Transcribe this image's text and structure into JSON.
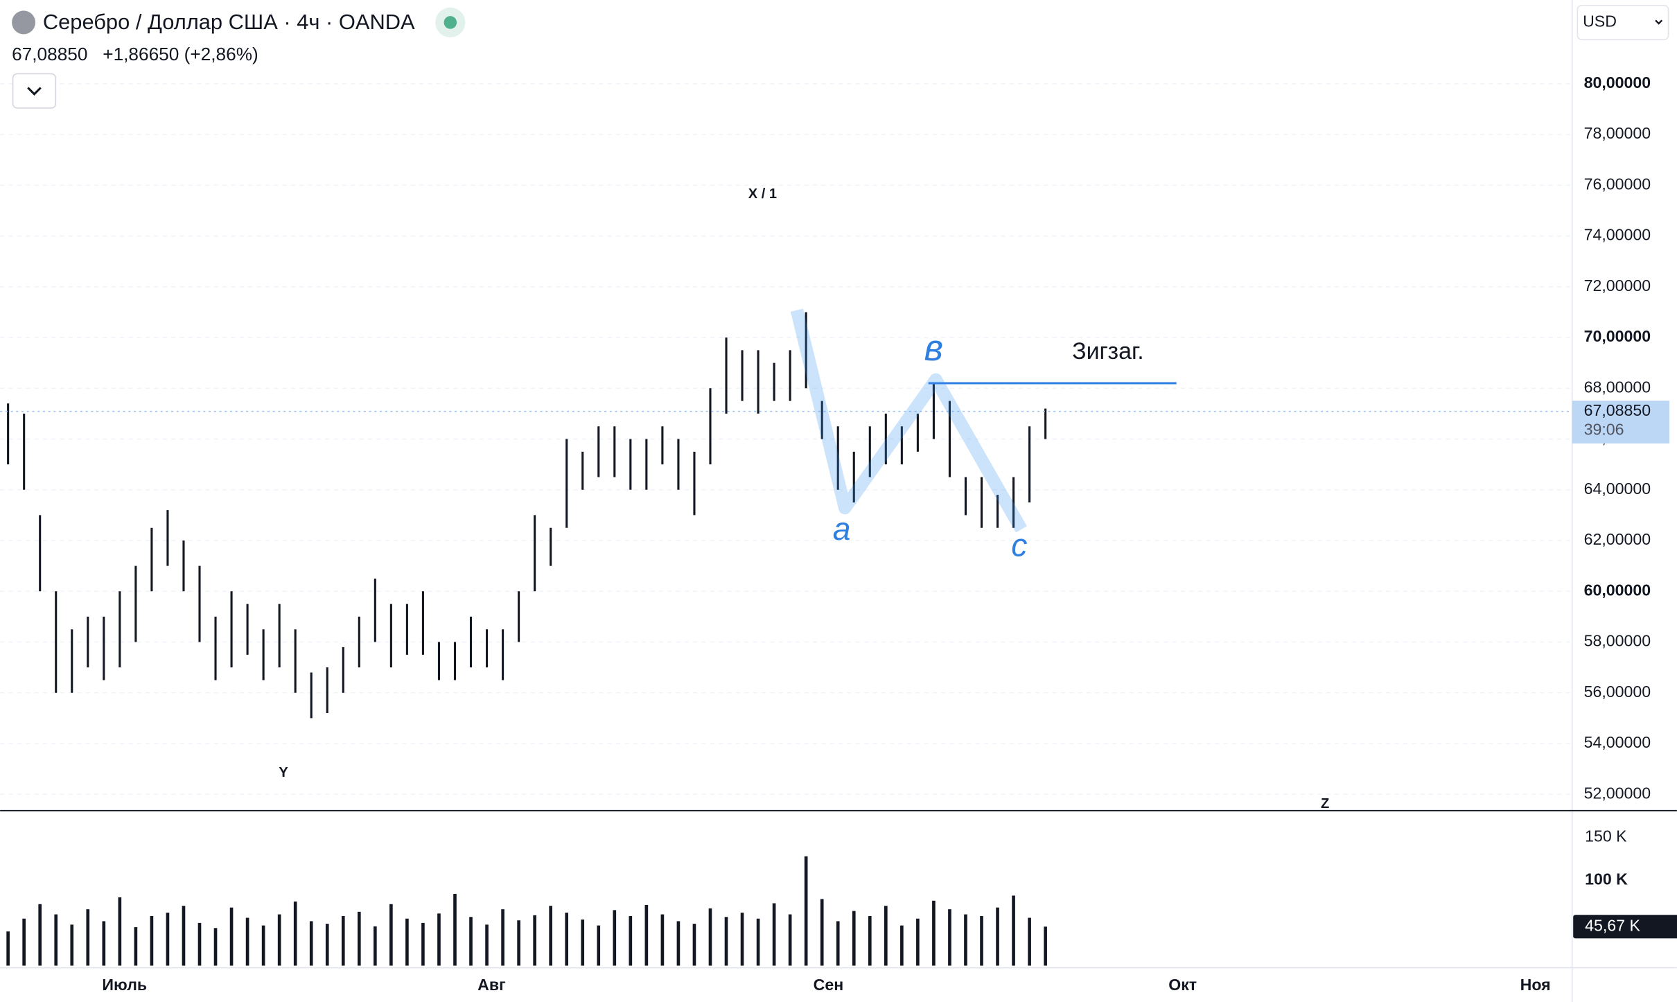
{
  "header": {
    "symbol": "Серебро / Доллар США · 4ч · OANDA",
    "price": "67,08850",
    "change": "+1,86650 (+2,86%)",
    "currency": "USD"
  },
  "chart_data": {
    "type": "ohlc",
    "color": "#131722",
    "volume_color": "#131722",
    "grid": true,
    "x": [
      0,
      1,
      2,
      3,
      4,
      5,
      6,
      7,
      8,
      9,
      10,
      11,
      12,
      13,
      14,
      15,
      16,
      17,
      18,
      19,
      20,
      21,
      22,
      23,
      24,
      25,
      26,
      27,
      28,
      29,
      30,
      31,
      32,
      33,
      34,
      35,
      36,
      37,
      38,
      39,
      40,
      41,
      42,
      43,
      44,
      45,
      46,
      47,
      48,
      49,
      50,
      51,
      52,
      53,
      54,
      55,
      56,
      57,
      58,
      59,
      60,
      61,
      62,
      63,
      64,
      65
    ],
    "high": [
      67.4,
      67,
      63,
      60,
      58.5,
      59,
      59,
      60,
      61,
      62.5,
      63.2,
      62,
      61,
      59,
      60,
      59.5,
      58.5,
      59.5,
      58.5,
      56.8,
      57,
      57.8,
      59,
      60.5,
      59.5,
      59.5,
      60,
      58,
      58,
      59,
      58.5,
      58.5,
      60,
      63,
      62.5,
      66,
      65.5,
      66.5,
      66.5,
      66,
      66,
      66.5,
      66,
      65.5,
      68,
      70,
      69.5,
      69.5,
      69,
      69.5,
      71,
      67.5,
      66.5,
      65.5,
      66.5,
      67,
      66.5,
      67,
      68.2,
      67.5,
      64.5,
      64.5,
      63.8,
      64.5,
      66.5,
      67.2
    ],
    "low": [
      65,
      64,
      60,
      56,
      56,
      57,
      56.5,
      57,
      58,
      60,
      61,
      60,
      58,
      56.5,
      57,
      57.5,
      56.5,
      57,
      56,
      55,
      55.2,
      56,
      57,
      58,
      57,
      57.5,
      57.5,
      56.5,
      56.5,
      57,
      57,
      56.5,
      58,
      60,
      61,
      62.5,
      64,
      64.5,
      64.5,
      64,
      64,
      65,
      64,
      63,
      65,
      67,
      67.5,
      67,
      67.5,
      67.5,
      68,
      66,
      64,
      63.5,
      64.5,
      65,
      65,
      65.5,
      66,
      64.5,
      63,
      62.5,
      62.5,
      62.5,
      63.5,
      66
    ],
    "volume": [
      40,
      55,
      72,
      60,
      48,
      66,
      52,
      80,
      45,
      58,
      62,
      70,
      50,
      44,
      68,
      56,
      47,
      60,
      75,
      52,
      49,
      58,
      63,
      46,
      72,
      55,
      50,
      61,
      84,
      57,
      48,
      66,
      53,
      59,
      70,
      62,
      54,
      47,
      65,
      58,
      71,
      60,
      52,
      49,
      67,
      57,
      62,
      55,
      73,
      60,
      128,
      78,
      52,
      64,
      58,
      70,
      47,
      55,
      76,
      66,
      60,
      58,
      68,
      82,
      56,
      45.67
    ],
    "xlim": [
      -0.5,
      98
    ],
    "xticks": [
      {
        "value": 7.3,
        "label": "Июль"
      },
      {
        "value": 30.3,
        "label": "Авг"
      },
      {
        "value": 51.4,
        "label": "Сен"
      },
      {
        "value": 73.6,
        "label": "Окт"
      },
      {
        "value": 95.7,
        "label": "Ноя"
      }
    ],
    "ylim": [
      51.4,
      83.3
    ],
    "yticks": [
      {
        "value": 52,
        "label": "52,00000"
      },
      {
        "value": 54,
        "label": "54,00000"
      },
      {
        "value": 56,
        "label": "56,00000"
      },
      {
        "value": 58,
        "label": "58,00000"
      },
      {
        "value": 60,
        "label": "60,00000"
      },
      {
        "value": 62,
        "label": "62,00000"
      },
      {
        "value": 64,
        "label": "64,00000"
      },
      {
        "value": 66,
        "label": "66,00000"
      },
      {
        "value": 68,
        "label": "68,00000"
      },
      {
        "value": 70,
        "label": "70,00000"
      },
      {
        "value": 72,
        "label": "72,00000"
      },
      {
        "value": 74,
        "label": "74,00000"
      },
      {
        "value": 76,
        "label": "76,00000"
      },
      {
        "value": 78,
        "label": "78,00000"
      },
      {
        "value": 80,
        "label": "80,00000"
      }
    ],
    "y2lim": [
      0,
      179
    ],
    "y2ticks": [
      {
        "value": 100,
        "label": "100 K"
      },
      {
        "value": 150,
        "label": "150 K"
      }
    ],
    "last_price": {
      "value": 67.0885,
      "label": "67,08850"
    },
    "countdown": "39:06",
    "last_volume": {
      "value": 45.67,
      "label": "45,67 K"
    },
    "level": 68.2,
    "annotations": [
      "X / 1",
      "Y",
      "Z",
      "Зигзаг.",
      "a",
      "в",
      "c"
    ]
  }
}
